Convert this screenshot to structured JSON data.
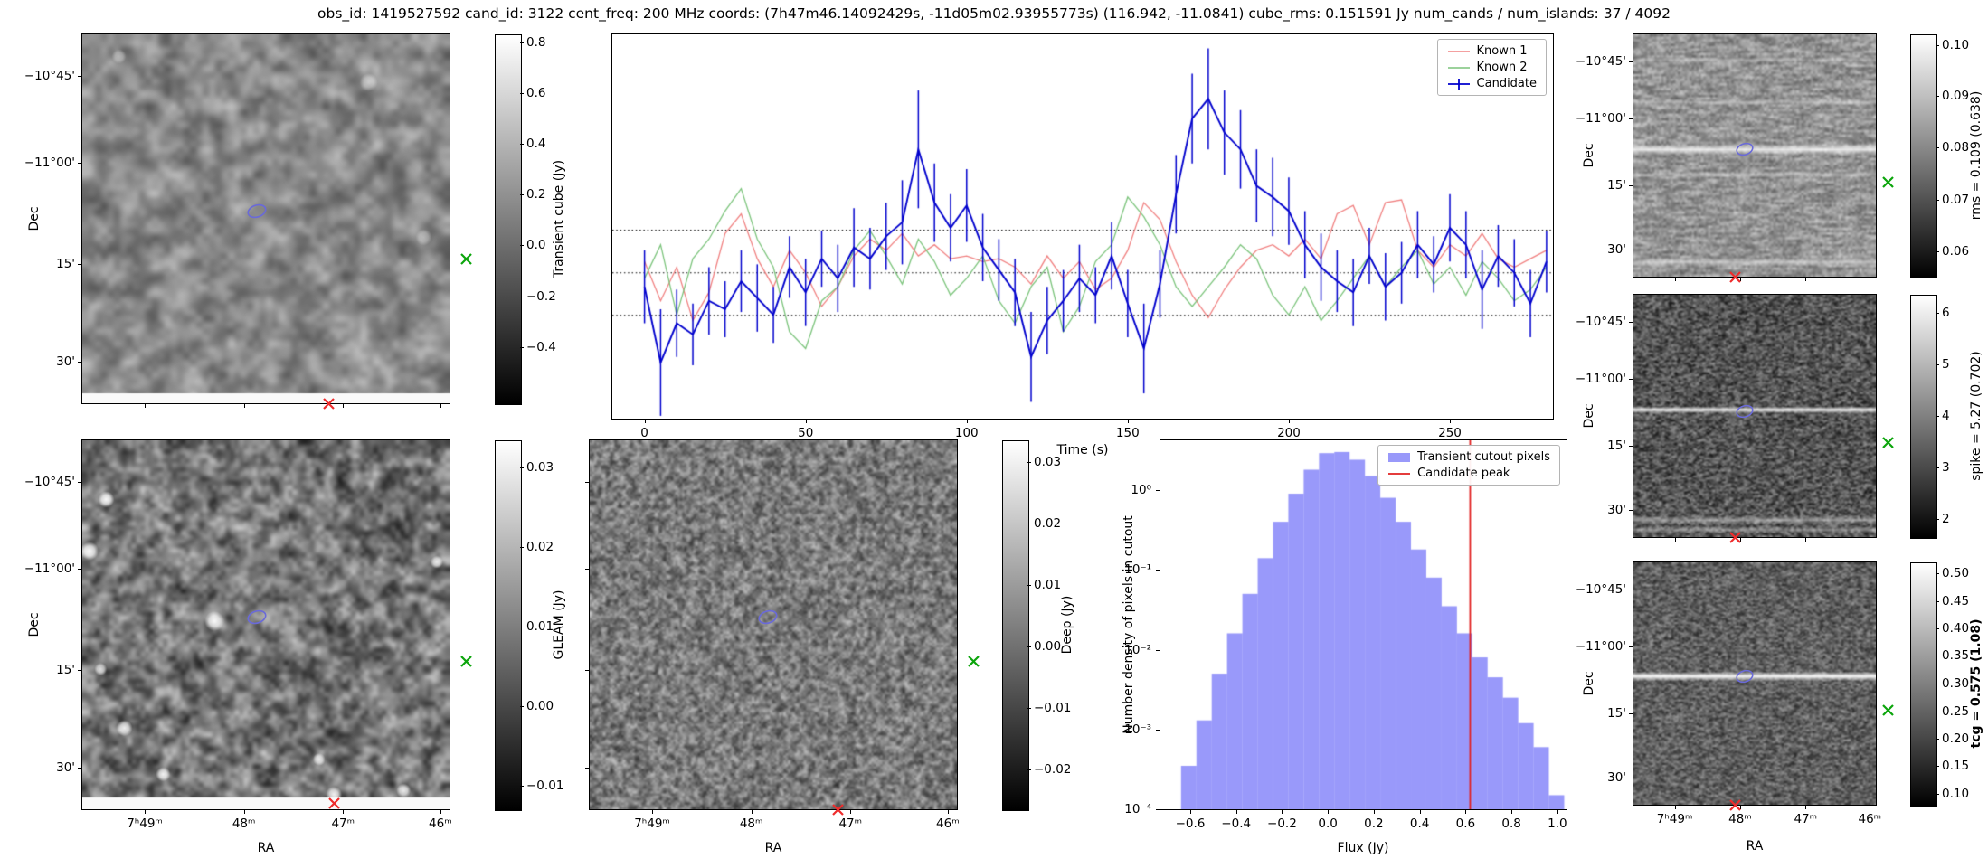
{
  "title": "obs_id: 1419527592 cand_id: 3122 cent_freq: 200 MHz coords: (7h47m46.14092429s, -11d05m02.93955773s) (116.942, -11.0841) cube_rms: 0.151591 Jy num_cands / num_islands: 37 / 4092",
  "axis_labels": {
    "dec": "Dec",
    "ra": "RA"
  },
  "dec_ticks": [
    "−10°45'",
    "−11°00'",
    "15'",
    "30'"
  ],
  "ra_ticks": [
    "7ʰ49ᵐ",
    "48ᵐ",
    "47ᵐ",
    "46ᵐ"
  ],
  "colorbars": {
    "cube": {
      "label": "Transient cube (Jy)",
      "ticks": [
        "0.8",
        "0.6",
        "0.4",
        "0.2",
        "0.0",
        "−0.2",
        "−0.4"
      ]
    },
    "gleam": {
      "label": "GLEAM (Jy)",
      "ticks": [
        "0.03",
        "0.02",
        "0.01",
        "0.00",
        "−0.01"
      ]
    },
    "deep": {
      "label": "Deep (Jy)",
      "ticks": [
        "0.03",
        "0.02",
        "0.01",
        "0.00",
        "−0.01",
        "−0.02"
      ]
    },
    "rms": {
      "label": "rms = 0.109 (0.638)",
      "ticks": [
        "0.10",
        "0.09",
        "0.08",
        "0.07",
        "0.06"
      ]
    },
    "spike": {
      "label": "spike = 5.27 (0.702)",
      "ticks": [
        "6",
        "5",
        "4",
        "3",
        "2"
      ]
    },
    "tcg": {
      "label": "tcg = 0.575 (1.08)",
      "ticks": [
        "0.50",
        "0.45",
        "0.40",
        "0.35",
        "0.30",
        "0.25",
        "0.20",
        "0.15",
        "0.10"
      ]
    }
  },
  "overlays": {
    "cube": {
      "ellipse": [
        0.475,
        0.48,
        10,
        6.5
      ],
      "green_x": [
        1.045,
        0.61
      ],
      "red_x": [
        0.67,
        1.0
      ]
    },
    "gleam": {
      "ellipse": [
        0.475,
        0.48,
        10,
        6.5
      ],
      "green_x": [
        1.045,
        0.6
      ],
      "red_x": [
        0.685,
        0.985
      ]
    },
    "deep": {
      "ellipse": [
        0.485,
        0.48,
        10,
        6.5
      ],
      "green_x": [
        1.045,
        0.6
      ],
      "red_x": [
        0.677,
        1.0
      ]
    },
    "rms": {
      "ellipse": [
        0.46,
        0.475,
        9,
        6
      ],
      "green_x": [
        1.05,
        0.61
      ],
      "red_x": [
        0.42,
        1.0
      ]
    },
    "spike": {
      "ellipse": [
        0.46,
        0.48,
        9,
        6
      ],
      "green_x": [
        1.05,
        0.61
      ],
      "red_x": [
        0.42,
        1.0
      ]
    },
    "tcg": {
      "ellipse": [
        0.46,
        0.47,
        9,
        6
      ],
      "green_x": [
        1.05,
        0.61
      ],
      "red_x": [
        0.42,
        1.0
      ]
    }
  },
  "chart_data": [
    {
      "type": "line",
      "title": "",
      "xlabel": "Time (s)",
      "ylabel": "Transient cube (Jy)",
      "xlim": [
        -10,
        282
      ],
      "ylim": [
        -0.52,
        0.85
      ],
      "xticks": [
        "0",
        "50",
        "100",
        "150",
        "200",
        "250"
      ],
      "hlines": [
        0.152,
        0.0,
        -0.152
      ],
      "legend_position": "upper right",
      "series": [
        {
          "name": "Known 1",
          "color": "#f08080",
          "x": [
            0,
            5,
            10,
            15,
            20,
            25,
            30,
            35,
            40,
            45,
            50,
            55,
            60,
            65,
            70,
            75,
            80,
            85,
            90,
            95,
            100,
            105,
            110,
            115,
            120,
            125,
            130,
            135,
            140,
            145,
            150,
            155,
            160,
            165,
            170,
            175,
            180,
            185,
            190,
            195,
            200,
            205,
            210,
            215,
            220,
            225,
            230,
            235,
            240,
            245,
            250,
            255,
            260,
            265,
            270,
            275,
            280
          ],
          "y": [
            0.04,
            -0.1,
            0.02,
            -0.17,
            -0.07,
            0.14,
            0.21,
            0.05,
            -0.05,
            0.08,
            0.0,
            -0.12,
            -0.05,
            0.06,
            0.12,
            0.08,
            0.14,
            0.06,
            0.1,
            0.05,
            0.06,
            0.04,
            0.05,
            0.02,
            -0.04,
            0.06,
            -0.02,
            0.04,
            -0.06,
            -0.02,
            0.08,
            0.25,
            0.19,
            0.04,
            -0.08,
            -0.16,
            -0.06,
            0.02,
            0.08,
            0.1,
            0.06,
            0.12,
            0.05,
            0.21,
            0.24,
            0.1,
            0.25,
            0.26,
            0.08,
            0.02,
            0.1,
            0.06,
            0.14,
            0.05,
            0.02,
            0.05,
            0.08
          ]
        },
        {
          "name": "Known 2",
          "color": "#7cc47c",
          "x": [
            0,
            5,
            10,
            15,
            20,
            25,
            30,
            35,
            40,
            45,
            50,
            55,
            60,
            65,
            70,
            75,
            80,
            85,
            90,
            95,
            100,
            105,
            110,
            115,
            120,
            125,
            130,
            135,
            140,
            145,
            150,
            155,
            160,
            165,
            170,
            175,
            180,
            185,
            190,
            195,
            200,
            205,
            210,
            215,
            220,
            225,
            230,
            235,
            240,
            245,
            250,
            255,
            260,
            265,
            270,
            275,
            280
          ],
          "y": [
            -0.02,
            0.1,
            -0.15,
            0.05,
            0.12,
            0.22,
            0.3,
            0.12,
            0.02,
            -0.21,
            -0.27,
            -0.1,
            -0.05,
            0.08,
            0.15,
            0.06,
            -0.04,
            0.12,
            0.04,
            -0.08,
            -0.02,
            0.06,
            -0.1,
            -0.18,
            -0.05,
            0.02,
            -0.21,
            -0.12,
            0.04,
            0.1,
            0.27,
            0.2,
            0.1,
            -0.05,
            -0.12,
            -0.05,
            0.02,
            0.1,
            0.05,
            -0.08,
            -0.15,
            -0.05,
            -0.17,
            -0.1,
            -0.02,
            0.06,
            -0.05,
            0.02,
            0.08,
            -0.04,
            0.02,
            -0.08,
            0.04,
            -0.02,
            -0.1,
            -0.06,
            0.02
          ]
        },
        {
          "name": "Candidate",
          "color": "#0000cd",
          "x": [
            0,
            5,
            10,
            15,
            20,
            25,
            30,
            35,
            40,
            45,
            50,
            55,
            60,
            65,
            70,
            75,
            80,
            85,
            90,
            95,
            100,
            105,
            110,
            115,
            120,
            125,
            130,
            135,
            140,
            145,
            150,
            155,
            160,
            165,
            170,
            175,
            180,
            185,
            190,
            195,
            200,
            205,
            210,
            215,
            220,
            225,
            230,
            235,
            240,
            245,
            250,
            255,
            260,
            265,
            270,
            275,
            280
          ],
          "y": [
            -0.05,
            -0.32,
            -0.18,
            -0.22,
            -0.1,
            -0.13,
            -0.03,
            -0.09,
            -0.15,
            0.02,
            -0.07,
            0.05,
            -0.02,
            0.09,
            0.05,
            0.13,
            0.18,
            0.44,
            0.25,
            0.16,
            0.24,
            0.09,
            0.01,
            -0.07,
            -0.3,
            -0.17,
            -0.1,
            -0.02,
            -0.08,
            0.06,
            -0.11,
            -0.27,
            -0.04,
            0.28,
            0.55,
            0.62,
            0.5,
            0.44,
            0.31,
            0.27,
            0.22,
            0.1,
            0.02,
            -0.03,
            -0.07,
            0.06,
            -0.05,
            0.0,
            0.1,
            0.03,
            0.16,
            0.1,
            -0.06,
            0.06,
            0.0,
            -0.11,
            0.04
          ],
          "yerr": [
            0.13,
            0.19,
            0.12,
            0.11,
            0.12,
            0.1,
            0.11,
            0.12,
            0.1,
            0.11,
            0.12,
            0.1,
            0.12,
            0.14,
            0.11,
            0.12,
            0.15,
            0.21,
            0.14,
            0.12,
            0.13,
            0.12,
            0.11,
            0.12,
            0.16,
            0.12,
            0.11,
            0.12,
            0.1,
            0.12,
            0.12,
            0.16,
            0.12,
            0.14,
            0.16,
            0.18,
            0.15,
            0.14,
            0.13,
            0.14,
            0.12,
            0.12,
            0.12,
            0.11,
            0.12,
            0.1,
            0.12,
            0.11,
            0.12,
            0.1,
            0.12,
            0.12,
            0.14,
            0.11,
            0.12,
            0.12,
            0.11
          ]
        }
      ]
    },
    {
      "type": "bar",
      "xlabel": "Flux (Jy)",
      "ylabel": "Number density of pixels in cutout",
      "xlim": [
        -0.73,
        1.04
      ],
      "ylog": true,
      "ylim": [
        0.0001,
        4.2
      ],
      "xticks": [
        "−0.6",
        "−0.4",
        "−0.2",
        "0.0",
        "0.2",
        "0.4",
        "0.6",
        "0.8",
        "1.0"
      ],
      "yticks": [
        "10⁰",
        "10⁻¹",
        "10⁻²",
        "10⁻³",
        "10⁻⁴"
      ],
      "bin_start": -0.64,
      "bin_width": 0.0668,
      "values": [
        0.00035,
        0.0013,
        0.005,
        0.016,
        0.05,
        0.14,
        0.4,
        0.9,
        1.8,
        2.9,
        3.0,
        2.4,
        1.5,
        0.8,
        0.4,
        0.18,
        0.08,
        0.035,
        0.016,
        0.008,
        0.0045,
        0.0025,
        0.0012,
        0.0006,
        0.00015
      ],
      "bar_color": "rgba(70,70,245,0.55)",
      "vline": 0.62,
      "vline_color": "#e02020",
      "legend": [
        "Transient cutout pixels",
        "Candidate peak"
      ]
    }
  ]
}
